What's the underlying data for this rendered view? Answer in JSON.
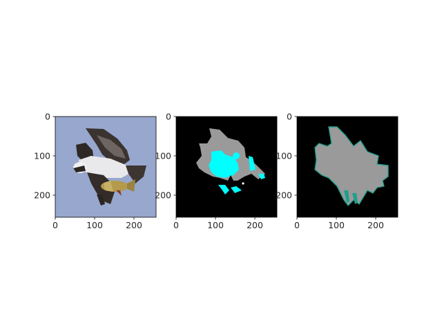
{
  "figure": {
    "panels": [
      {
        "name": "photo",
        "content": "osprey-carrying-fish",
        "x_ticks": [
          "0",
          "100",
          "200"
        ],
        "y_ticks": [
          "0",
          "100",
          "200"
        ],
        "colors": {
          "sky": "#98a7cd",
          "wing_dark": "#3b3330",
          "belly": "#e9e8ea",
          "fish": "#b39a4c"
        }
      },
      {
        "name": "segmentation-mask",
        "x_ticks": [
          "0",
          "100",
          "200"
        ],
        "y_ticks": [
          "0",
          "100",
          "200"
        ],
        "colors": {
          "background": "#000000",
          "region": "#9a9a9a",
          "highlight": "#00ffff"
        }
      },
      {
        "name": "predicted-mask",
        "x_ticks": [
          "0",
          "100",
          "200"
        ],
        "y_ticks": [
          "0",
          "100",
          "200"
        ],
        "colors": {
          "background": "#000000",
          "region": "#9a9a9a",
          "edge": "#1e9f8c"
        }
      }
    ]
  }
}
